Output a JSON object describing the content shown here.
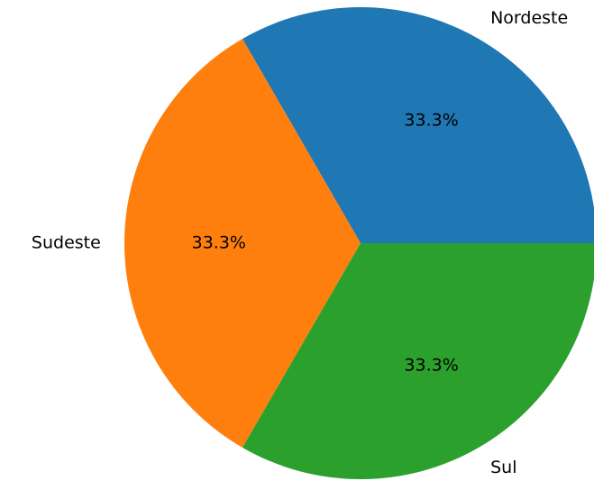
{
  "chart_data": {
    "type": "pie",
    "categories": [
      "Nordeste",
      "Sudeste",
      "Sul"
    ],
    "values": [
      33.3,
      33.3,
      33.3
    ],
    "value_labels": [
      "33.3%",
      "33.3%",
      "33.3%"
    ],
    "colors": [
      "#1f77b4",
      "#ff7f0e",
      "#2ca02c"
    ]
  }
}
